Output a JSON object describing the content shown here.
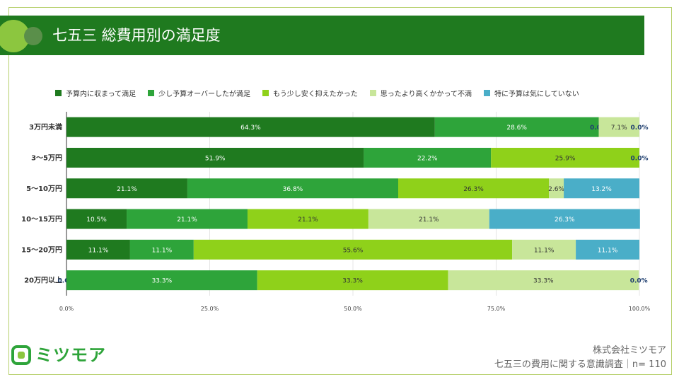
{
  "header": {
    "title": "七五三 総費用別の満足度"
  },
  "colors": {
    "banner": "#1f7a1f",
    "series": [
      "#1f7a1f",
      "#2ea43a",
      "#8fd11a",
      "#c8e69a",
      "#4aaec8"
    ]
  },
  "chart_data": {
    "type": "bar",
    "orientation": "horizontal",
    "stacked": true,
    "percent": true,
    "categories": [
      "3万円未満",
      "3〜5万円",
      "5〜10万円",
      "10〜15万円",
      "15〜20万円",
      "20万円以上"
    ],
    "series": [
      {
        "name": "予算内に収まって満足",
        "values": [
          64.3,
          51.9,
          21.1,
          10.5,
          11.1,
          0.0
        ]
      },
      {
        "name": "少し予算オーバーしたが満足",
        "values": [
          28.6,
          22.2,
          36.8,
          21.1,
          11.1,
          33.3
        ]
      },
      {
        "name": "もう少し安く抑えたかった",
        "values": [
          0.0,
          25.9,
          26.3,
          21.1,
          55.6,
          33.3
        ]
      },
      {
        "name": "思ったより高くかかって不満",
        "values": [
          7.1,
          null,
          2.6,
          21.1,
          11.1,
          33.3
        ]
      },
      {
        "name": "特に予算は気にしていない",
        "values": [
          0.0,
          0.0,
          13.2,
          26.3,
          11.1,
          0.0
        ]
      }
    ],
    "xlim": [
      0,
      100
    ],
    "xticks": [
      "0.0%",
      "25.0%",
      "50.0%",
      "75.0%",
      "100.0%"
    ],
    "legend_position": "top"
  },
  "footer": {
    "logo_text": "ミツモア",
    "company": "株式会社ミツモア",
    "survey": "七五三の費用に関する意識調査｜n= 110"
  }
}
